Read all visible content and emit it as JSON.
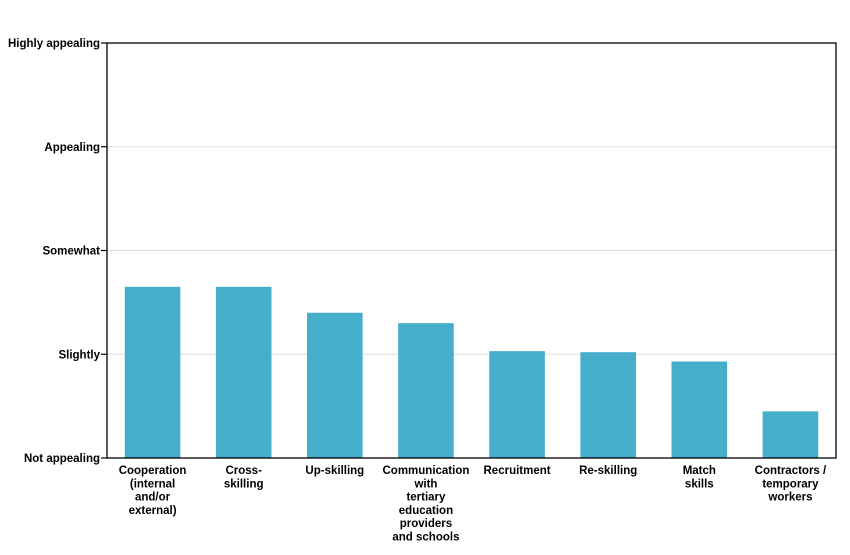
{
  "chart_data": {
    "type": "bar",
    "categories": [
      [
        "Cooperation",
        "(internal",
        "and/or",
        "external)"
      ],
      [
        "Cross-",
        "skilling"
      ],
      [
        "Up-skilling"
      ],
      [
        "Communication",
        "with",
        "tertiary",
        "education",
        "providers",
        "and schools"
      ],
      [
        "Recruitment"
      ],
      [
        "Re-skilling"
      ],
      [
        "Match",
        "skills"
      ],
      [
        "Contractors /",
        "temporary",
        "workers"
      ]
    ],
    "values": [
      2.65,
      2.65,
      2.4,
      2.3,
      2.03,
      2.02,
      1.93,
      1.45
    ],
    "ylim": [
      1,
      5
    ],
    "yticks": [
      {
        "value": 5,
        "label": "Highly appealing"
      },
      {
        "value": 4,
        "label": "Appealing"
      },
      {
        "value": 3,
        "label": "Somewhat"
      },
      {
        "value": 2,
        "label": "Slightly"
      },
      {
        "value": 1,
        "label": "Not appealing"
      }
    ],
    "grid": true,
    "title": "",
    "xlabel": "",
    "ylabel": "",
    "bar_color": "#45aecb",
    "grid_color": "#dddddd"
  }
}
